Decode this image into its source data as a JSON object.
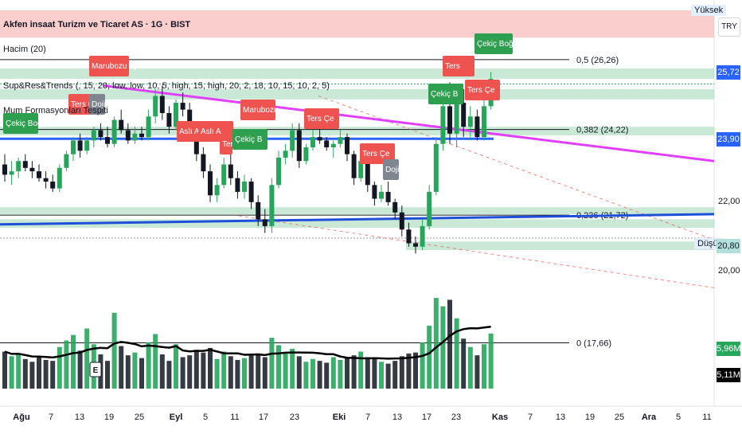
{
  "header": {
    "title": "Akfen insaat Turizm ve Ticaret AS · 1G · BIST",
    "volume_label": "Hacim (20)",
    "indicator_1": "Sup&Res&Trends (, 15, 20, low, low, 10, 5, high, 15, high, 20, 2, 18, 10, 15, 10, 2, 5)",
    "indicator_2": "Mum Formasyonları Tespiti"
  },
  "scale": {
    "currency": "TRY",
    "high_tag": "Yüksek",
    "low_tag": "Düşük",
    "ticks": [
      "22,00",
      "20,00"
    ],
    "price_tags": [
      {
        "text": "25,72",
        "color": "#2962ff"
      },
      {
        "text": "23,90",
        "color": "#2962ff"
      },
      {
        "text": "20,80",
        "color": "#b2dfdb"
      }
    ],
    "volume_tags": [
      {
        "text": "5,96M",
        "color": "#26a65b"
      },
      {
        "text": "5,11M",
        "color": "#000000"
      }
    ]
  },
  "fib_labels": [
    {
      "text": "0,5 (26,26)",
      "price": 26.26
    },
    {
      "text": "0,382 (24,22)",
      "price": 24.22
    },
    {
      "text": "0,236 (21,72)",
      "price": 21.72
    }
  ],
  "volume_fib_label": "0 (17,66)",
  "earnings_marker": "E",
  "pattern_labels": [
    {
      "text": "Çekiç Boğa",
      "kind": "bull"
    },
    {
      "text": "Ters Çe",
      "kind": "bear"
    },
    {
      "text": "Doji",
      "kind": "neutral"
    },
    {
      "text": "Marubozu Ayı",
      "kind": "bear"
    },
    {
      "text": "Marubozu",
      "kind": "bear"
    },
    {
      "text": "Aslı A",
      "kind": "bear"
    },
    {
      "text": "Aslı A",
      "kind": "bear"
    },
    {
      "text": "Ters",
      "kind": "bear"
    },
    {
      "text": "Çekiç B",
      "kind": "bull"
    },
    {
      "text": "Ters Çe",
      "kind": "bear"
    },
    {
      "text": "Ters Çe",
      "kind": "bear"
    },
    {
      "text": "Doji",
      "kind": "neutral"
    },
    {
      "text": "Çekiç B",
      "kind": "bull"
    },
    {
      "text": "Ters",
      "kind": "bear"
    },
    {
      "text": "Ters Çe",
      "kind": "bear"
    },
    {
      "text": "Çekiç Boğa",
      "kind": "bull"
    }
  ],
  "chart_data": {
    "type": "candlestick",
    "y_range": [
      19.4,
      28.0
    ],
    "x_axis_labels": [
      "Ağu",
      "7",
      "13",
      "19",
      "25",
      "Eyl",
      "5",
      "11",
      "17",
      "23",
      "Eki",
      "7",
      "13",
      "17",
      "23",
      "Kas",
      "7",
      "13",
      "19",
      "25",
      "Ara",
      "5",
      "11"
    ],
    "x_axis_bold": [
      "Ağu",
      "Eyl",
      "Eki",
      "Kas",
      "Ara"
    ],
    "candles": [
      {
        "o": 23.2,
        "h": 23.5,
        "l": 22.7,
        "c": 22.9,
        "v": 4.0
      },
      {
        "o": 22.9,
        "h": 23.3,
        "l": 22.6,
        "c": 23.0,
        "v": 3.5
      },
      {
        "o": 23.0,
        "h": 23.4,
        "l": 22.8,
        "c": 23.3,
        "v": 3.8
      },
      {
        "o": 23.3,
        "h": 23.5,
        "l": 23.0,
        "c": 23.1,
        "v": 3.2
      },
      {
        "o": 23.1,
        "h": 23.3,
        "l": 22.8,
        "c": 23.0,
        "v": 2.9
      },
      {
        "o": 23.0,
        "h": 23.2,
        "l": 22.7,
        "c": 22.8,
        "v": 3.4
      },
      {
        "o": 22.8,
        "h": 23.0,
        "l": 22.5,
        "c": 22.7,
        "v": 3.1
      },
      {
        "o": 22.7,
        "h": 22.9,
        "l": 22.4,
        "c": 22.5,
        "v": 3.0
      },
      {
        "o": 22.5,
        "h": 23.2,
        "l": 22.4,
        "c": 23.1,
        "v": 4.5
      },
      {
        "o": 23.1,
        "h": 23.6,
        "l": 23.0,
        "c": 23.5,
        "v": 5.2
      },
      {
        "o": 23.5,
        "h": 24.0,
        "l": 23.3,
        "c": 23.9,
        "v": 5.8
      },
      {
        "o": 23.9,
        "h": 24.1,
        "l": 23.4,
        "c": 23.6,
        "v": 4.1
      },
      {
        "o": 23.6,
        "h": 24.0,
        "l": 23.5,
        "c": 23.9,
        "v": 6.5
      },
      {
        "o": 23.9,
        "h": 24.3,
        "l": 23.7,
        "c": 24.2,
        "v": 4.8
      },
      {
        "o": 24.2,
        "h": 24.4,
        "l": 23.9,
        "c": 24.0,
        "v": 3.7
      },
      {
        "o": 24.0,
        "h": 24.3,
        "l": 23.7,
        "c": 23.8,
        "v": 3.0
      },
      {
        "o": 23.8,
        "h": 24.6,
        "l": 23.7,
        "c": 24.5,
        "v": 8.2
      },
      {
        "o": 24.5,
        "h": 24.8,
        "l": 24.1,
        "c": 24.2,
        "v": 4.6
      },
      {
        "o": 24.2,
        "h": 24.4,
        "l": 23.8,
        "c": 23.9,
        "v": 3.6
      },
      {
        "o": 23.9,
        "h": 24.3,
        "l": 23.8,
        "c": 24.1,
        "v": 3.9
      },
      {
        "o": 24.1,
        "h": 24.3,
        "l": 23.9,
        "c": 24.0,
        "v": 3.3
      },
      {
        "o": 24.0,
        "h": 24.8,
        "l": 23.9,
        "c": 24.6,
        "v": 5.0
      },
      {
        "o": 24.6,
        "h": 25.4,
        "l": 24.4,
        "c": 25.2,
        "v": 5.9
      },
      {
        "o": 25.2,
        "h": 25.5,
        "l": 24.5,
        "c": 24.7,
        "v": 3.7
      },
      {
        "o": 24.7,
        "h": 24.9,
        "l": 24.1,
        "c": 24.3,
        "v": 3.0
      },
      {
        "o": 24.3,
        "h": 25.1,
        "l": 24.2,
        "c": 25.0,
        "v": 4.8
      },
      {
        "o": 25.0,
        "h": 25.3,
        "l": 24.6,
        "c": 24.8,
        "v": 3.4
      },
      {
        "o": 24.8,
        "h": 25.0,
        "l": 24.0,
        "c": 24.2,
        "v": 3.6
      },
      {
        "o": 24.2,
        "h": 24.3,
        "l": 23.3,
        "c": 23.5,
        "v": 4.2
      },
      {
        "o": 23.5,
        "h": 23.7,
        "l": 22.8,
        "c": 23.0,
        "v": 3.9
      },
      {
        "o": 23.0,
        "h": 23.2,
        "l": 22.1,
        "c": 22.3,
        "v": 4.4
      },
      {
        "o": 22.3,
        "h": 22.8,
        "l": 22.1,
        "c": 22.6,
        "v": 3.2
      },
      {
        "o": 22.6,
        "h": 23.4,
        "l": 22.5,
        "c": 23.2,
        "v": 4.0
      },
      {
        "o": 23.2,
        "h": 23.5,
        "l": 22.6,
        "c": 22.8,
        "v": 3.5
      },
      {
        "o": 22.8,
        "h": 23.0,
        "l": 22.2,
        "c": 22.4,
        "v": 3.1
      },
      {
        "o": 22.4,
        "h": 22.9,
        "l": 22.2,
        "c": 22.7,
        "v": 3.3
      },
      {
        "o": 22.7,
        "h": 22.8,
        "l": 21.9,
        "c": 22.1,
        "v": 3.6
      },
      {
        "o": 22.1,
        "h": 22.3,
        "l": 21.4,
        "c": 21.6,
        "v": 3.8
      },
      {
        "o": 21.6,
        "h": 21.9,
        "l": 21.2,
        "c": 21.4,
        "v": 3.4
      },
      {
        "o": 21.4,
        "h": 22.8,
        "l": 21.2,
        "c": 22.6,
        "v": 5.5
      },
      {
        "o": 22.6,
        "h": 23.6,
        "l": 22.5,
        "c": 23.4,
        "v": 4.7
      },
      {
        "o": 23.4,
        "h": 23.8,
        "l": 23.2,
        "c": 23.6,
        "v": 3.9
      },
      {
        "o": 23.6,
        "h": 24.4,
        "l": 23.4,
        "c": 24.2,
        "v": 4.3
      },
      {
        "o": 24.2,
        "h": 24.4,
        "l": 23.1,
        "c": 23.3,
        "v": 3.5
      },
      {
        "o": 23.3,
        "h": 23.8,
        "l": 23.2,
        "c": 23.7,
        "v": 2.9
      },
      {
        "o": 23.7,
        "h": 24.2,
        "l": 23.6,
        "c": 24.0,
        "v": 3.2
      },
      {
        "o": 24.0,
        "h": 24.4,
        "l": 23.8,
        "c": 23.9,
        "v": 3.0
      },
      {
        "o": 23.9,
        "h": 24.0,
        "l": 23.6,
        "c": 23.7,
        "v": 2.8
      },
      {
        "o": 23.7,
        "h": 23.9,
        "l": 23.4,
        "c": 23.8,
        "v": 3.4
      },
      {
        "o": 23.8,
        "h": 24.2,
        "l": 23.7,
        "c": 24.0,
        "v": 3.1
      },
      {
        "o": 24.0,
        "h": 24.1,
        "l": 23.3,
        "c": 23.5,
        "v": 3.3
      },
      {
        "o": 23.5,
        "h": 23.6,
        "l": 22.6,
        "c": 22.8,
        "v": 3.6
      },
      {
        "o": 22.8,
        "h": 23.5,
        "l": 22.7,
        "c": 23.3,
        "v": 4.0
      },
      {
        "o": 23.3,
        "h": 23.4,
        "l": 22.4,
        "c": 22.6,
        "v": 3.4
      },
      {
        "o": 22.6,
        "h": 22.7,
        "l": 22.0,
        "c": 22.2,
        "v": 3.2
      },
      {
        "o": 22.2,
        "h": 22.6,
        "l": 22.1,
        "c": 22.4,
        "v": 2.9
      },
      {
        "o": 22.4,
        "h": 22.7,
        "l": 22.0,
        "c": 22.1,
        "v": 2.7
      },
      {
        "o": 22.1,
        "h": 22.2,
        "l": 21.6,
        "c": 21.8,
        "v": 3.0
      },
      {
        "o": 21.8,
        "h": 22.0,
        "l": 21.1,
        "c": 21.3,
        "v": 3.5
      },
      {
        "o": 21.3,
        "h": 21.5,
        "l": 20.8,
        "c": 20.9,
        "v": 3.8
      },
      {
        "o": 20.9,
        "h": 21.1,
        "l": 20.6,
        "c": 20.8,
        "v": 3.9
      },
      {
        "o": 20.8,
        "h": 21.6,
        "l": 20.7,
        "c": 21.4,
        "v": 5.0
      },
      {
        "o": 21.4,
        "h": 22.6,
        "l": 21.3,
        "c": 22.4,
        "v": 6.8
      },
      {
        "o": 22.4,
        "h": 24.0,
        "l": 22.3,
        "c": 23.8,
        "v": 9.8
      },
      {
        "o": 23.8,
        "h": 25.1,
        "l": 23.6,
        "c": 24.9,
        "v": 8.9
      },
      {
        "o": 24.9,
        "h": 25.6,
        "l": 23.8,
        "c": 24.1,
        "v": 9.6
      },
      {
        "o": 24.1,
        "h": 25.2,
        "l": 23.7,
        "c": 25.0,
        "v": 7.6
      },
      {
        "o": 25.0,
        "h": 25.4,
        "l": 24.0,
        "c": 24.3,
        "v": 5.4
      },
      {
        "o": 24.3,
        "h": 24.9,
        "l": 23.9,
        "c": 24.6,
        "v": 4.5
      },
      {
        "o": 24.6,
        "h": 24.8,
        "l": 23.9,
        "c": 24.0,
        "v": 3.6
      },
      {
        "o": 24.0,
        "h": 25.1,
        "l": 23.9,
        "c": 24.9,
        "v": 4.8
      },
      {
        "o": 24.9,
        "h": 25.9,
        "l": 24.8,
        "c": 25.7,
        "v": 5.96
      }
    ]
  }
}
